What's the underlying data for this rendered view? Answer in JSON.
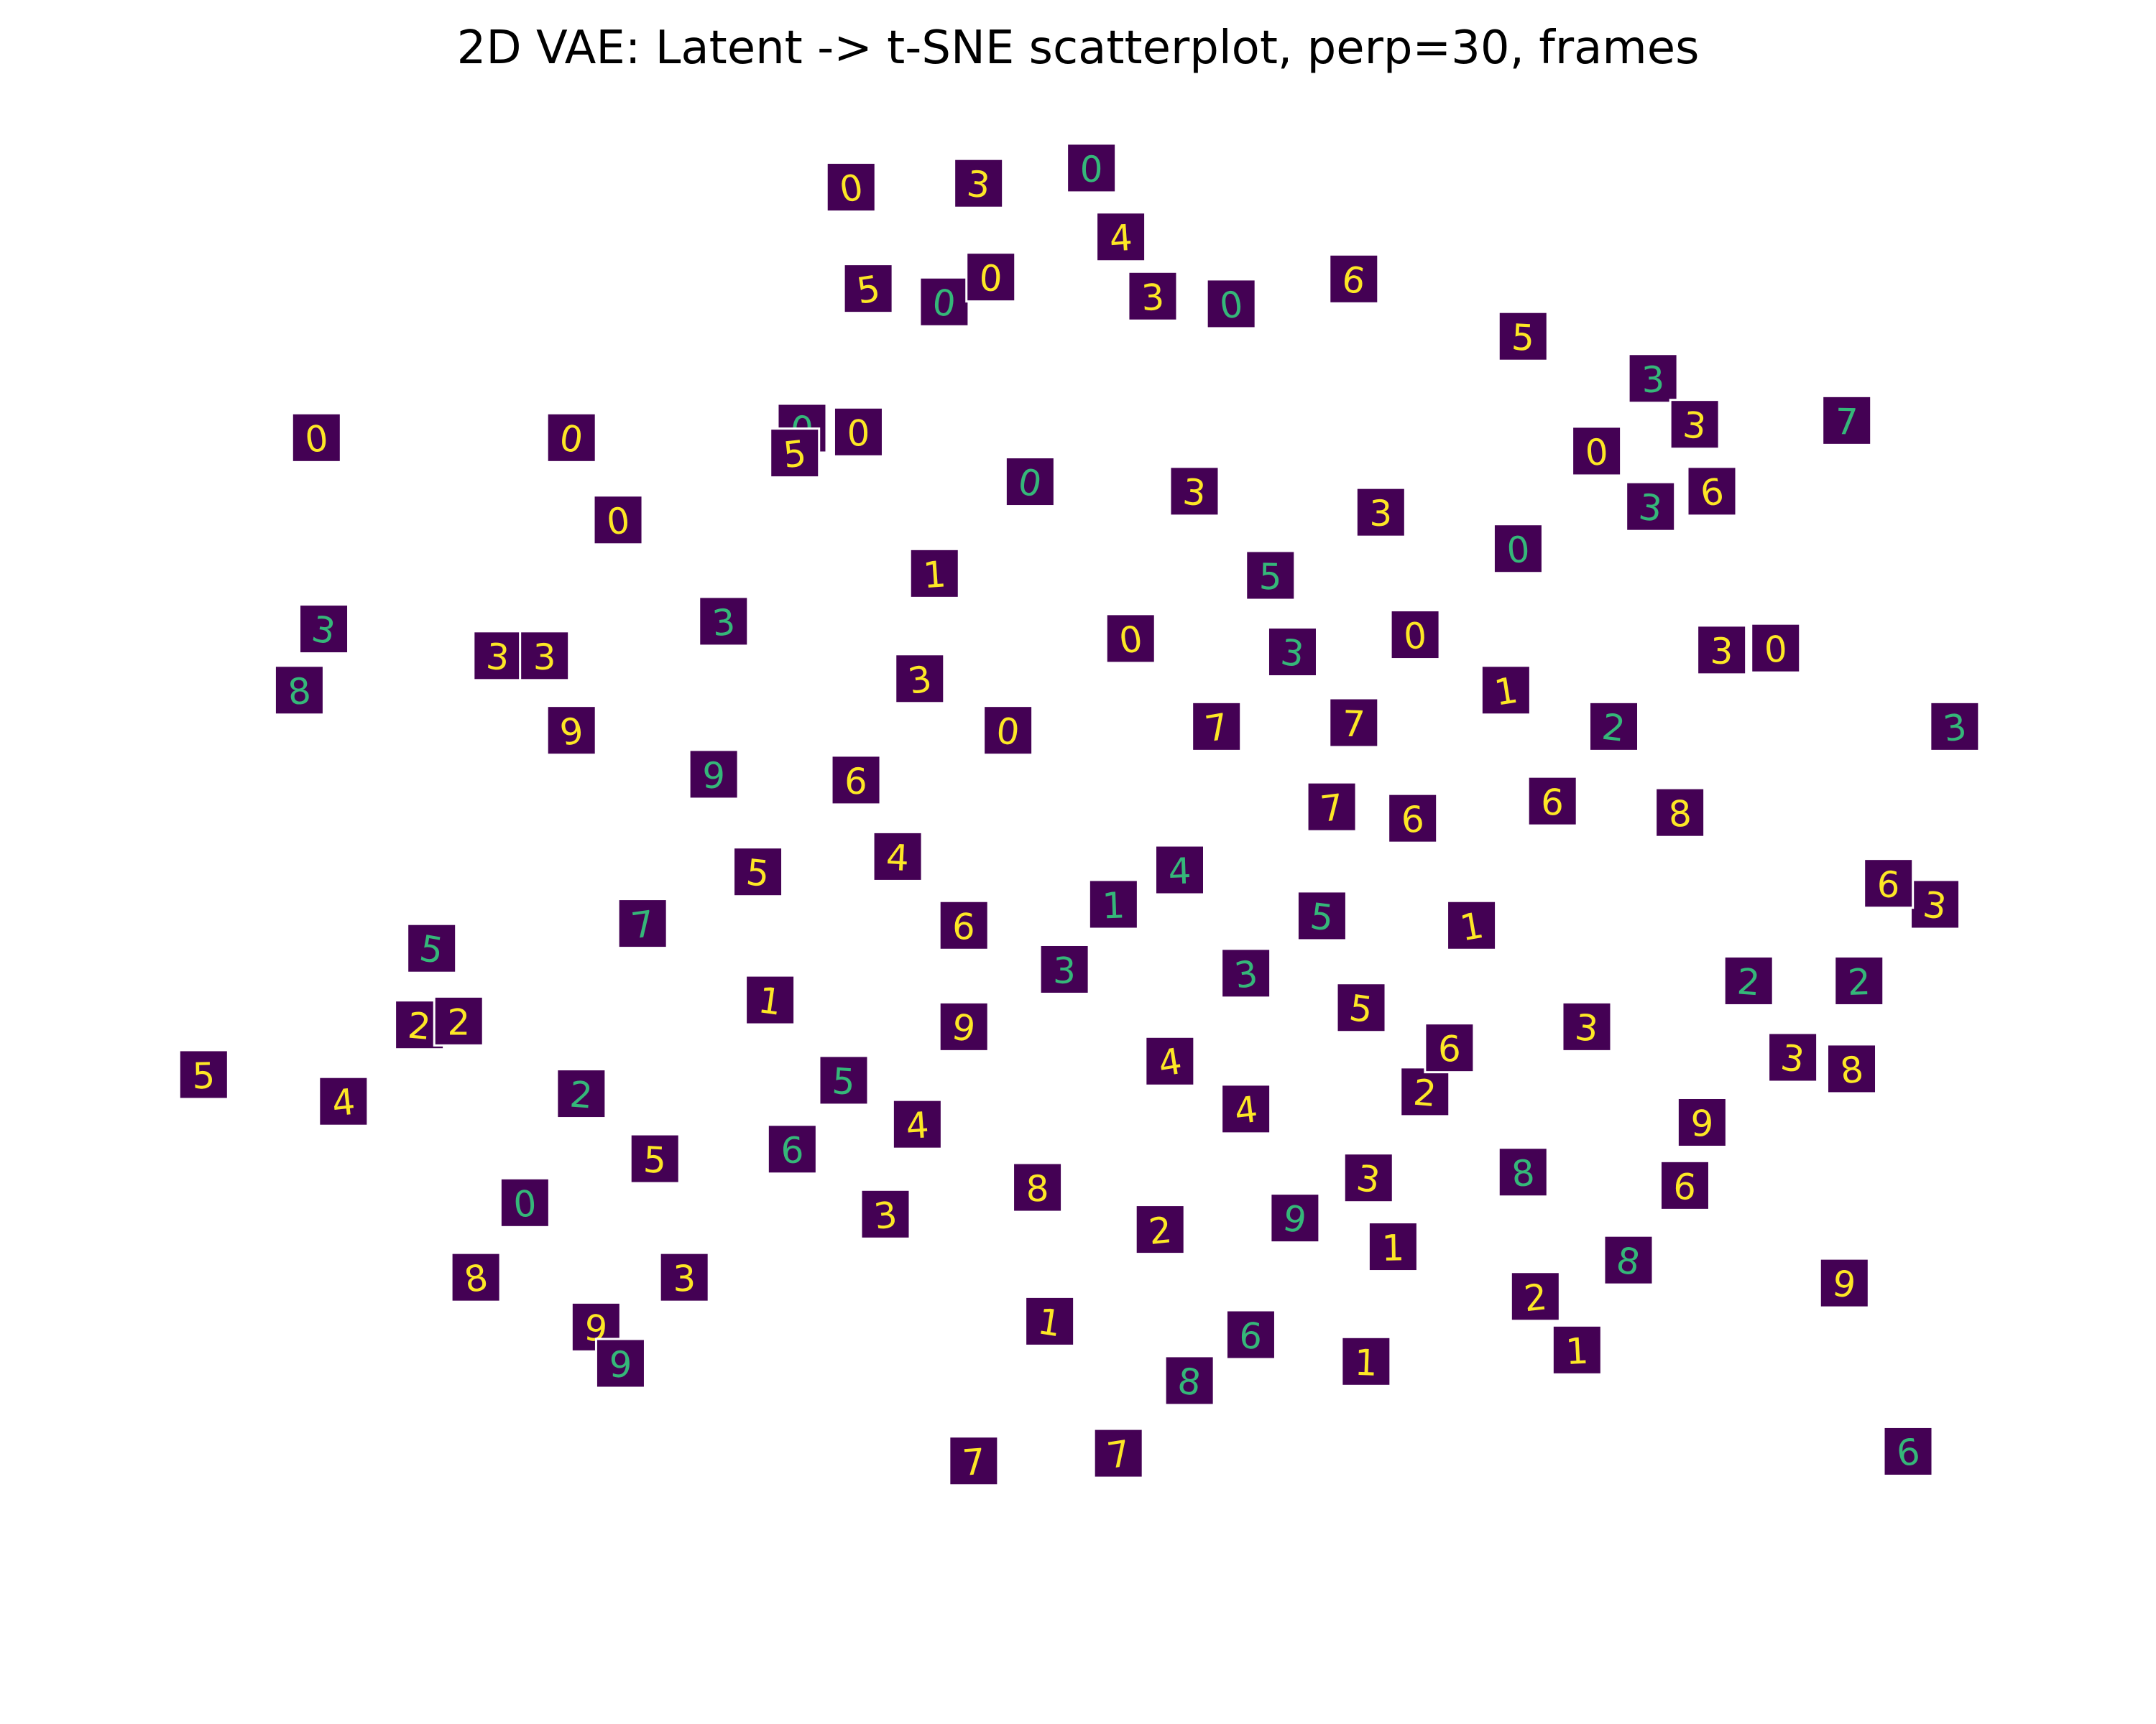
{
  "chart_data": {
    "type": "scatter",
    "title": "2D VAE: Latent -> t-SNE scatterplot, perp=30, frames",
    "xlabel": "",
    "ylabel": "",
    "axes_visible": false,
    "grid": false,
    "xlim": [
      -40,
      40
    ],
    "ylim": [
      -40,
      40
    ],
    "marker": "digit-image-thumbnail",
    "colors": {
      "tile": "#440154",
      "glyph": "#fde725",
      "glyph_faint": "#35b779"
    },
    "points": [
      {
        "x": -9.4,
        "y": 36.6,
        "label": "0"
      },
      {
        "x": -4.2,
        "y": 36.8,
        "label": "3"
      },
      {
        "x": 0.4,
        "y": 37.6,
        "label": "0"
      },
      {
        "x": 1.6,
        "y": 34.0,
        "label": "4"
      },
      {
        "x": -8.7,
        "y": 31.3,
        "label": "5"
      },
      {
        "x": -5.6,
        "y": 30.6,
        "label": "0"
      },
      {
        "x": -3.7,
        "y": 31.9,
        "label": "0"
      },
      {
        "x": 2.9,
        "y": 30.9,
        "label": "3"
      },
      {
        "x": 6.1,
        "y": 30.5,
        "label": "0"
      },
      {
        "x": 11.1,
        "y": 31.8,
        "label": "6"
      },
      {
        "x": 18.0,
        "y": 28.8,
        "label": "5"
      },
      {
        "x": 23.3,
        "y": 26.6,
        "label": "3"
      },
      {
        "x": -31.2,
        "y": 23.5,
        "label": "0"
      },
      {
        "x": -20.8,
        "y": 23.5,
        "label": "0"
      },
      {
        "x": -11.4,
        "y": 24.0,
        "label": "0"
      },
      {
        "x": -9.1,
        "y": 23.8,
        "label": "0"
      },
      {
        "x": -18.9,
        "y": 19.2,
        "label": "0"
      },
      {
        "x": -30.9,
        "y": 13.5,
        "label": "3"
      },
      {
        "x": -23.8,
        "y": 12.1,
        "label": "3"
      },
      {
        "x": -21.9,
        "y": 12.1,
        "label": "3"
      },
      {
        "x": -31.9,
        "y": 10.3,
        "label": "8"
      },
      {
        "x": -20.8,
        "y": 8.2,
        "label": "9"
      },
      {
        "x": 25.0,
        "y": 24.2,
        "label": "3"
      },
      {
        "x": 31.2,
        "y": 24.4,
        "label": "7"
      },
      {
        "x": 21.0,
        "y": 22.8,
        "label": "0"
      },
      {
        "x": 25.7,
        "y": 20.7,
        "label": "6"
      },
      {
        "x": 23.2,
        "y": 19.9,
        "label": "3"
      },
      {
        "x": 26.1,
        "y": 12.4,
        "label": "3"
      },
      {
        "x": 28.3,
        "y": 12.5,
        "label": "0"
      },
      {
        "x": 35.6,
        "y": 8.4,
        "label": "3"
      },
      {
        "x": 34.8,
        "y": -0.9,
        "label": "3"
      },
      {
        "x": 32.9,
        "y": 0.2,
        "label": "6"
      },
      {
        "x": 31.7,
        "y": -4.9,
        "label": "2"
      },
      {
        "x": 31.4,
        "y": -9.5,
        "label": "8"
      },
      {
        "x": 29.0,
        "y": -8.9,
        "label": "3"
      },
      {
        "x": 27.2,
        "y": -4.9,
        "label": "2"
      },
      {
        "x": -35.8,
        "y": -9.8,
        "label": "5"
      },
      {
        "x": -30.1,
        "y": -11.2,
        "label": "4"
      },
      {
        "x": -26.5,
        "y": -3.2,
        "label": "5"
      },
      {
        "x": -27.0,
        "y": -7.2,
        "label": "2"
      },
      {
        "x": -25.4,
        "y": -7.0,
        "label": "2"
      },
      {
        "x": -22.7,
        "y": -16.5,
        "label": "0"
      },
      {
        "x": -24.7,
        "y": -20.4,
        "label": "8"
      },
      {
        "x": -19.8,
        "y": -23.0,
        "label": "9"
      },
      {
        "x": -18.8,
        "y": -24.9,
        "label": "9"
      },
      {
        "x": -4.4,
        "y": -30.0,
        "label": "7"
      },
      {
        "x": 1.5,
        "y": -29.6,
        "label": "7"
      },
      {
        "x": 4.4,
        "y": -25.8,
        "label": "8"
      },
      {
        "x": 11.6,
        "y": -24.8,
        "label": "1"
      },
      {
        "x": 20.2,
        "y": -24.2,
        "label": "1"
      },
      {
        "x": 33.7,
        "y": -29.5,
        "label": "6"
      },
      {
        "x": 31.1,
        "y": -20.7,
        "label": "9"
      },
      {
        "x": -7.5,
        "y": 1.6,
        "label": "4"
      },
      {
        "x": 4.0,
        "y": 0.9,
        "label": "4"
      },
      {
        "x": 10.2,
        "y": 4.2,
        "label": "7"
      },
      {
        "x": -4.8,
        "y": -7.3,
        "label": "9"
      },
      {
        "x": -9.7,
        "y": -10.1,
        "label": "5"
      },
      {
        "x": -1.8,
        "y": -15.7,
        "label": "8"
      },
      {
        "x": 3.2,
        "y": -17.9,
        "label": "2"
      },
      {
        "x": 8.7,
        "y": -17.3,
        "label": "9"
      },
      {
        "x": 14.0,
        "y": -10.7,
        "label": "2"
      },
      {
        "x": 15.0,
        "y": -8.4,
        "label": "6"
      },
      {
        "x": 18.0,
        "y": -14.9,
        "label": "8"
      },
      {
        "x": 5.5,
        "y": 8.4,
        "label": "7"
      },
      {
        "x": -13.2,
        "y": 0.8,
        "label": "5"
      },
      {
        "x": -15.0,
        "y": 5.9,
        "label": "9"
      },
      {
        "x": -6.0,
        "y": 16.4,
        "label": "1"
      },
      {
        "x": 2.0,
        "y": 13.0,
        "label": "0"
      },
      {
        "x": 8.6,
        "y": 12.3,
        "label": "3"
      },
      {
        "x": 11.1,
        "y": 8.6,
        "label": "7"
      },
      {
        "x": 13.5,
        "y": 3.6,
        "label": "6"
      },
      {
        "x": 6.7,
        "y": -4.5,
        "label": "3"
      },
      {
        "x": 11.4,
        "y": -6.3,
        "label": "5"
      },
      {
        "x": -17.4,
        "y": -14.2,
        "label": "5"
      },
      {
        "x": -11.8,
        "y": -13.7,
        "label": "6"
      },
      {
        "x": -8.0,
        "y": -17.1,
        "label": "3"
      },
      {
        "x": -1.3,
        "y": -22.7,
        "label": "1"
      },
      {
        "x": 6.9,
        "y": -23.4,
        "label": "6"
      },
      {
        "x": 12.7,
        "y": -18.8,
        "label": "1"
      },
      {
        "x": 18.5,
        "y": -21.4,
        "label": "2"
      },
      {
        "x": 22.3,
        "y": -19.5,
        "label": "8"
      },
      {
        "x": 24.6,
        "y": -15.6,
        "label": "6"
      },
      {
        "x": 25.3,
        "y": -12.3,
        "label": "9"
      },
      {
        "x": -14.6,
        "y": 13.9,
        "label": "3"
      },
      {
        "x": -6.6,
        "y": 10.9,
        "label": "3"
      },
      {
        "x": -3.0,
        "y": 8.2,
        "label": "0"
      },
      {
        "x": 7.7,
        "y": 16.3,
        "label": "5"
      },
      {
        "x": 13.6,
        "y": 13.2,
        "label": "0"
      },
      {
        "x": 17.3,
        "y": 10.3,
        "label": "1"
      },
      {
        "x": 21.7,
        "y": 8.4,
        "label": "2"
      },
      {
        "x": 19.2,
        "y": 4.5,
        "label": "6"
      },
      {
        "x": 24.4,
        "y": 3.9,
        "label": "8"
      },
      {
        "x": -17.9,
        "y": -1.9,
        "label": "7"
      },
      {
        "x": -12.7,
        "y": -5.9,
        "label": "1"
      },
      {
        "x": -4.8,
        "y": -2.0,
        "label": "6"
      },
      {
        "x": 1.3,
        "y": -0.9,
        "label": "1"
      },
      {
        "x": 6.7,
        "y": -11.6,
        "label": "4"
      },
      {
        "x": 11.7,
        "y": -15.2,
        "label": "3"
      },
      {
        "x": -20.4,
        "y": -10.8,
        "label": "2"
      },
      {
        "x": -16.2,
        "y": -20.4,
        "label": "3"
      },
      {
        "x": -11.7,
        "y": 22.7,
        "label": "5"
      },
      {
        "x": -2.1,
        "y": 21.2,
        "label": "0"
      },
      {
        "x": 4.6,
        "y": 20.7,
        "label": "3"
      },
      {
        "x": 12.2,
        "y": 19.6,
        "label": "3"
      },
      {
        "x": 17.8,
        "y": 17.7,
        "label": "0"
      },
      {
        "x": 15.9,
        "y": -2.0,
        "label": "1"
      },
      {
        "x": 20.6,
        "y": -7.3,
        "label": "3"
      },
      {
        "x": -0.7,
        "y": -4.3,
        "label": "3"
      },
      {
        "x": -6.7,
        "y": -12.4,
        "label": "4"
      },
      {
        "x": 3.6,
        "y": -9.1,
        "label": "4"
      },
      {
        "x": 9.8,
        "y": -1.5,
        "label": "5"
      },
      {
        "x": -9.2,
        "y": 5.6,
        "label": "6"
      }
    ]
  }
}
